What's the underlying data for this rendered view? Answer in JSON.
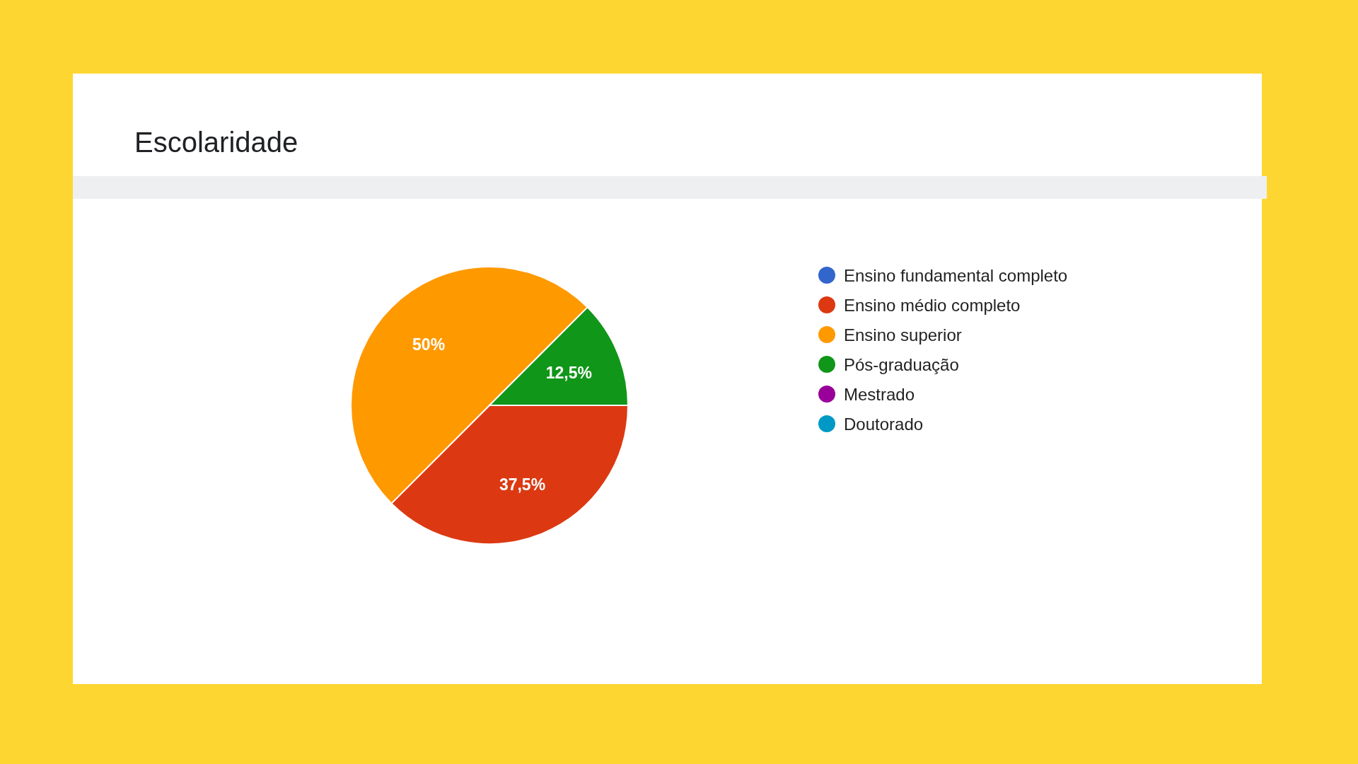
{
  "chart_data": {
    "type": "pie",
    "title": "Escolaridade",
    "categories": [
      "Ensino fundamental completo",
      "Ensino médio completo",
      "Ensino superior",
      "Pós-graduação",
      "Mestrado",
      "Doutorado"
    ],
    "values": [
      0,
      37.5,
      50,
      12.5,
      0,
      0
    ],
    "colors": [
      "#3366cc",
      "#dc3912",
      "#ff9900",
      "#109618",
      "#990099",
      "#0099c6"
    ],
    "value_labels": [
      null,
      "37,5%",
      "50%",
      "12,5%",
      null,
      null
    ],
    "legend": "right"
  }
}
